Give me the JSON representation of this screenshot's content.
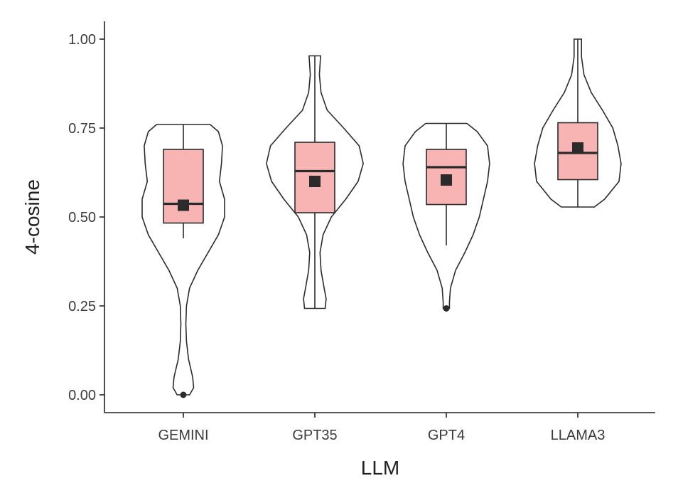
{
  "chart_data": {
    "type": "violin",
    "xlabel": "LLM",
    "ylabel": "4-cosine",
    "ylim": [
      -0.05,
      1.05
    ],
    "yticks": [
      0.0,
      0.25,
      0.5,
      0.75,
      1.0
    ],
    "ytick_labels": [
      "0.00",
      "0.25",
      "0.50",
      "0.75",
      "1.00"
    ],
    "categories": [
      "GEMINI",
      "GPT35",
      "GPT4",
      "LLAMA3"
    ],
    "colors": {
      "box_fill": "#f8b4b2",
      "line": "#2b2b2b",
      "violin_fill": "#ffffff"
    },
    "groups": [
      {
        "name": "GEMINI",
        "min": 0.0,
        "max": 0.76,
        "q1": 0.483,
        "median": 0.537,
        "q3": 0.69,
        "mean": 0.533,
        "whisker_low": 0.44,
        "whisker_high": 0.76,
        "outliers": [
          0.0
        ],
        "violin": [
          [
            0.0,
            0.03
          ],
          [
            0.02,
            0.05
          ],
          [
            0.05,
            0.045
          ],
          [
            0.1,
            0.025
          ],
          [
            0.15,
            0.015
          ],
          [
            0.2,
            0.012
          ],
          [
            0.25,
            0.015
          ],
          [
            0.3,
            0.03
          ],
          [
            0.35,
            0.07
          ],
          [
            0.4,
            0.12
          ],
          [
            0.45,
            0.17
          ],
          [
            0.5,
            0.2
          ],
          [
            0.55,
            0.2
          ],
          [
            0.6,
            0.175
          ],
          [
            0.65,
            0.185
          ],
          [
            0.7,
            0.19
          ],
          [
            0.74,
            0.17
          ],
          [
            0.76,
            0.13
          ]
        ]
      },
      {
        "name": "GPT35",
        "min": 0.243,
        "max": 0.953,
        "q1": 0.512,
        "median": 0.629,
        "q3": 0.71,
        "mean": 0.6,
        "whisker_low": 0.243,
        "whisker_high": 0.953,
        "outliers": [],
        "violin": [
          [
            0.243,
            0.05
          ],
          [
            0.27,
            0.055
          ],
          [
            0.3,
            0.045
          ],
          [
            0.35,
            0.03
          ],
          [
            0.4,
            0.025
          ],
          [
            0.45,
            0.04
          ],
          [
            0.5,
            0.08
          ],
          [
            0.55,
            0.15
          ],
          [
            0.6,
            0.21
          ],
          [
            0.65,
            0.235
          ],
          [
            0.7,
            0.215
          ],
          [
            0.75,
            0.14
          ],
          [
            0.8,
            0.06
          ],
          [
            0.85,
            0.03
          ],
          [
            0.9,
            0.022
          ],
          [
            0.953,
            0.028
          ]
        ]
      },
      {
        "name": "GPT4",
        "min": 0.243,
        "max": 0.763,
        "q1": 0.535,
        "median": 0.64,
        "q3": 0.69,
        "mean": 0.604,
        "whisker_low": 0.42,
        "whisker_high": 0.763,
        "outliers": [
          0.243
        ],
        "violin": [
          [
            0.243,
            0.015
          ],
          [
            0.26,
            0.015
          ],
          [
            0.3,
            0.02
          ],
          [
            0.35,
            0.045
          ],
          [
            0.4,
            0.09
          ],
          [
            0.45,
            0.13
          ],
          [
            0.5,
            0.16
          ],
          [
            0.55,
            0.18
          ],
          [
            0.6,
            0.2
          ],
          [
            0.65,
            0.21
          ],
          [
            0.7,
            0.2
          ],
          [
            0.74,
            0.15
          ],
          [
            0.763,
            0.1
          ]
        ]
      },
      {
        "name": "LLAMA3",
        "min": 0.528,
        "max": 1.0,
        "q1": 0.605,
        "median": 0.68,
        "q3": 0.765,
        "mean": 0.694,
        "whisker_low": 0.528,
        "whisker_high": 1.0,
        "outliers": [],
        "violin": [
          [
            0.528,
            0.08
          ],
          [
            0.55,
            0.13
          ],
          [
            0.6,
            0.2
          ],
          [
            0.65,
            0.21
          ],
          [
            0.7,
            0.195
          ],
          [
            0.75,
            0.17
          ],
          [
            0.8,
            0.12
          ],
          [
            0.85,
            0.065
          ],
          [
            0.9,
            0.03
          ],
          [
            0.95,
            0.018
          ],
          [
            1.0,
            0.018
          ]
        ]
      }
    ]
  }
}
